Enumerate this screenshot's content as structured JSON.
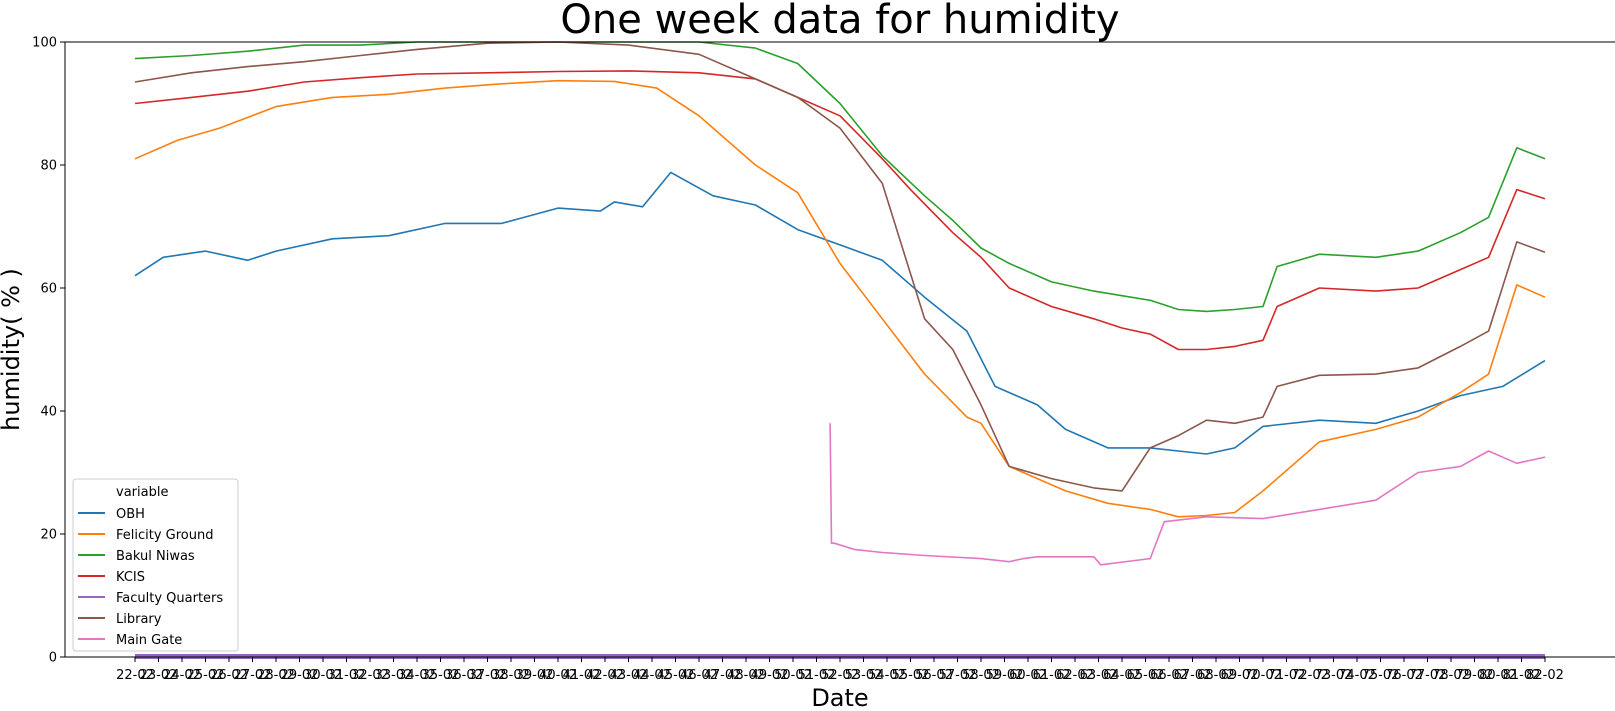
{
  "chart_data": {
    "type": "line",
    "title": "One week data for humidity",
    "xlabel": "Date",
    "ylabel": "humidity( % )",
    "ylim": [
      0,
      100
    ],
    "yticks": [
      0,
      20,
      40,
      60,
      80,
      100
    ],
    "x_tick_labels": [
      "22-02",
      "23-02",
      "24-02",
      "25-02",
      "26-02",
      "27-02",
      "28-02",
      "29-02",
      "30-02",
      "31-02",
      "32-02",
      "33-02",
      "34-02",
      "35-02",
      "36-02",
      "37-02",
      "38-02",
      "39-02",
      "40-02",
      "41-02",
      "42-02",
      "43-02",
      "44-02",
      "45-02",
      "46-02",
      "47-02",
      "48-02",
      "49-02",
      "50-02",
      "51-02",
      "52-02",
      "53-02",
      "54-02",
      "55-02",
      "56-02",
      "57-02",
      "58-02",
      "59-02",
      "60-02",
      "61-02",
      "62-02",
      "63-02",
      "64-02",
      "65-02",
      "66-02",
      "67-02",
      "68-02",
      "69-02",
      "70-02",
      "71-02",
      "72-02",
      "73-02",
      "74-02",
      "75-02",
      "76-02",
      "77-02",
      "78-02",
      "79-02",
      "80-02",
      "81-02",
      "82-02"
    ],
    "x_range": [
      0,
      1
    ],
    "grid": false,
    "legend": {
      "title": "variable",
      "placement": "lower-left"
    },
    "series": [
      {
        "name": "OBH",
        "color": "#1f77b4",
        "x": [
          0,
          0.02,
          0.05,
          0.08,
          0.1,
          0.14,
          0.18,
          0.22,
          0.26,
          0.3,
          0.33,
          0.34,
          0.36,
          0.38,
          0.41,
          0.44,
          0.47,
          0.5,
          0.53,
          0.56,
          0.59,
          0.61,
          0.64,
          0.66,
          0.69,
          0.72,
          0.74,
          0.76,
          0.78,
          0.8,
          0.84,
          0.88,
          0.91,
          0.94,
          0.97,
          1.0
        ],
        "y": [
          62,
          65,
          66,
          64.5,
          66,
          68,
          68.5,
          70.5,
          70.5,
          73,
          72.5,
          74,
          73.2,
          78.8,
          75,
          73.5,
          69.5,
          67,
          64.5,
          58.5,
          53,
          44,
          41,
          37,
          34,
          34,
          33.5,
          33,
          34,
          37.5,
          38.5,
          38,
          40,
          42.5,
          44,
          48.2
        ]
      },
      {
        "name": "Felicity Ground",
        "color": "#ff7f0e",
        "x": [
          0,
          0.03,
          0.06,
          0.1,
          0.14,
          0.18,
          0.22,
          0.26,
          0.3,
          0.34,
          0.37,
          0.4,
          0.44,
          0.47,
          0.5,
          0.53,
          0.56,
          0.59,
          0.6,
          0.62,
          0.66,
          0.69,
          0.72,
          0.74,
          0.76,
          0.78,
          0.8,
          0.84,
          0.88,
          0.91,
          0.94,
          0.96,
          0.98,
          1.0
        ],
        "y": [
          81,
          84,
          86,
          89.5,
          91,
          91.5,
          92.5,
          93.2,
          93.7,
          93.6,
          92.5,
          88,
          80,
          75.5,
          64,
          55,
          46,
          39,
          38,
          31,
          27,
          25,
          24,
          22.8,
          23,
          23.5,
          27,
          35,
          37,
          39,
          43,
          46,
          60.5,
          58.5
        ]
      },
      {
        "name": "Bakul Niwas",
        "color": "#2ca02c",
        "x": [
          0,
          0.04,
          0.08,
          0.12,
          0.16,
          0.2,
          0.25,
          0.3,
          0.35,
          0.4,
          0.44,
          0.47,
          0.5,
          0.53,
          0.56,
          0.58,
          0.6,
          0.62,
          0.65,
          0.68,
          0.72,
          0.74,
          0.76,
          0.78,
          0.8,
          0.81,
          0.84,
          0.88,
          0.91,
          0.94,
          0.96,
          0.98,
          1.0
        ],
        "y": [
          97.3,
          97.8,
          98.5,
          99.5,
          99.5,
          100,
          100,
          100,
          100,
          100,
          99,
          96.5,
          90,
          81.5,
          75,
          71,
          66.5,
          64,
          61,
          59.5,
          58,
          56.5,
          56.2,
          56.5,
          57,
          63.5,
          65.5,
          65,
          66,
          69,
          71.5,
          82.8,
          81
        ]
      },
      {
        "name": "KCIS",
        "color": "#d62728",
        "x": [
          0,
          0.04,
          0.08,
          0.12,
          0.16,
          0.2,
          0.25,
          0.3,
          0.35,
          0.4,
          0.44,
          0.47,
          0.5,
          0.53,
          0.55,
          0.58,
          0.6,
          0.62,
          0.65,
          0.68,
          0.7,
          0.72,
          0.74,
          0.76,
          0.78,
          0.8,
          0.81,
          0.84,
          0.88,
          0.91,
          0.94,
          0.96,
          0.98,
          1.0
        ],
        "y": [
          90,
          91,
          92,
          93.5,
          94.2,
          94.8,
          95,
          95.2,
          95.3,
          95,
          94,
          91,
          88,
          81,
          76,
          69,
          65,
          60,
          57,
          55,
          53.5,
          52.5,
          50,
          50,
          50.5,
          51.5,
          57,
          60,
          59.5,
          60,
          63,
          65,
          76,
          74.5
        ]
      },
      {
        "name": "Faculty Quarters",
        "color": "#9467bd",
        "x": [
          0,
          1
        ],
        "y": [
          0,
          0
        ]
      },
      {
        "name": "Library",
        "color": "#8c564b",
        "x": [
          0,
          0.04,
          0.08,
          0.12,
          0.16,
          0.2,
          0.25,
          0.3,
          0.35,
          0.4,
          0.44,
          0.47,
          0.5,
          0.53,
          0.56,
          0.58,
          0.6,
          0.62,
          0.65,
          0.68,
          0.7,
          0.72,
          0.74,
          0.76,
          0.78,
          0.8,
          0.81,
          0.84,
          0.88,
          0.91,
          0.94,
          0.96,
          0.98,
          1.0
        ],
        "y": [
          93.5,
          95,
          96,
          96.8,
          97.8,
          98.8,
          99.8,
          100,
          99.5,
          98,
          94,
          91,
          86,
          77,
          55,
          50,
          41,
          31,
          29,
          27.5,
          27,
          34,
          36,
          38.5,
          38,
          39,
          44,
          45.8,
          46,
          47,
          50.5,
          53,
          67.5,
          65.8
        ]
      },
      {
        "name": "Main Gate",
        "color": "#e377c2",
        "x": [
          0.493,
          0.494,
          0.496,
          0.51,
          0.53,
          0.56,
          0.6,
          0.62,
          0.63,
          0.64,
          0.68,
          0.685,
          0.72,
          0.73,
          0.76,
          0.8,
          0.84,
          0.88,
          0.91,
          0.94,
          0.96,
          0.98,
          1.0
        ],
        "y": [
          38,
          18.5,
          18.5,
          17.5,
          17,
          16.5,
          16,
          15.5,
          16,
          16.3,
          16.3,
          15,
          16,
          22,
          22.8,
          22.5,
          24,
          25.5,
          30,
          31,
          33.5,
          31.5,
          32.5
        ]
      }
    ]
  }
}
